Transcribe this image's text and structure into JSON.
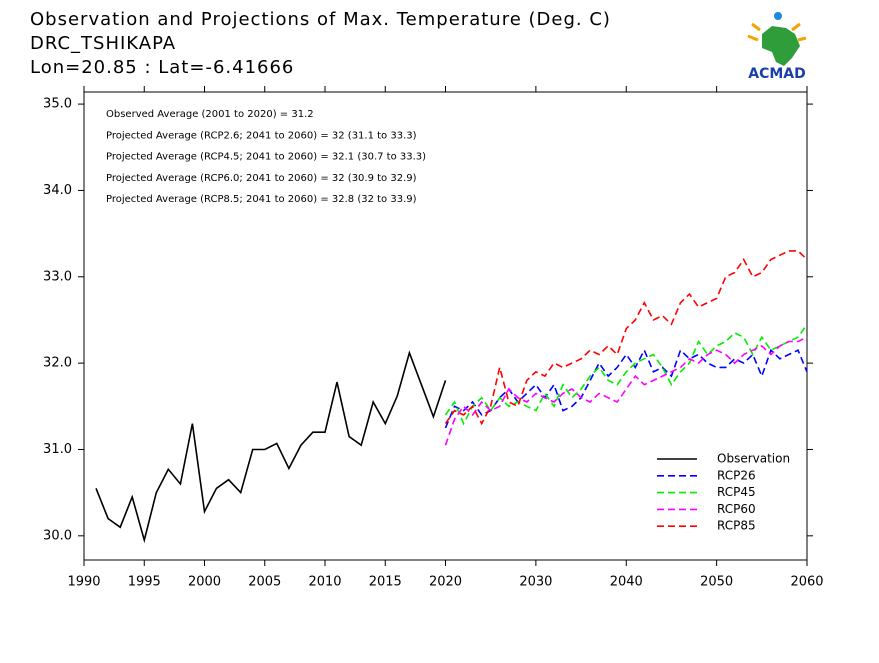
{
  "chart_data": {
    "type": "line",
    "title": "Observation and Projections of Max. Temperature (Deg. C)",
    "subtitle": "DRC_TSHIKAPA",
    "location": "Lon=20.85 : Lat=-6.41666",
    "logo": "ACMAD",
    "annotations": [
      "Observed Average (2001 to 2020) = 31.2",
      "Projected Average (RCP2.6; 2041 to 2060) = 32 (31.1 to 33.3)",
      "Projected Average (RCP4.5; 2041 to 2060) = 32.1 (30.7 to 33.3)",
      "Projected Average (RCP6.0; 2041 to 2060) = 32 (30.9 to 32.9)",
      "Projected Average (RCP8.5; 2041 to 2060) = 32.8 (32 to 33.9)"
    ],
    "x_segments": [
      1990,
      2020,
      2060
    ],
    "xticks": [
      1990,
      1995,
      2000,
      2005,
      2010,
      2015,
      2020,
      2030,
      2040,
      2050,
      2060
    ],
    "ylim": [
      29.72,
      35.14
    ],
    "yticks": [
      {
        "value": 30,
        "label": "30.0"
      },
      {
        "value": 31,
        "label": "31.0"
      },
      {
        "value": 32,
        "label": "32.0"
      },
      {
        "value": 33,
        "label": "33.0"
      },
      {
        "value": 34,
        "label": "34.0"
      },
      {
        "value": 35,
        "label": "35.0"
      }
    ],
    "legend": "lower-right",
    "series": [
      {
        "name": "Observation",
        "color": "#000000",
        "dashed": false,
        "x": [
          1991,
          1992,
          1993,
          1994,
          1995,
          1996,
          1997,
          1998,
          1999,
          2000,
          2001,
          2002,
          2003,
          2004,
          2005,
          2006,
          2007,
          2008,
          2009,
          2010,
          2011,
          2012,
          2013,
          2014,
          2015,
          2016,
          2017,
          2018,
          2019,
          2020
        ],
        "values": [
          30.55,
          30.2,
          30.1,
          30.45,
          29.95,
          30.5,
          30.77,
          30.6,
          31.3,
          30.28,
          30.55,
          30.65,
          30.5,
          31.0,
          31.0,
          31.07,
          30.78,
          31.05,
          31.2,
          31.2,
          31.78,
          31.15,
          31.05,
          31.55,
          31.3,
          31.62,
          32.12,
          31.75,
          31.38,
          31.8
        ]
      },
      {
        "name": "RCP26",
        "color": "#0000ff",
        "dashed": true,
        "x": [
          2020,
          2021,
          2022,
          2023,
          2024,
          2025,
          2026,
          2027,
          2028,
          2029,
          2030,
          2031,
          2032,
          2033,
          2034,
          2035,
          2036,
          2037,
          2038,
          2039,
          2040,
          2041,
          2042,
          2043,
          2044,
          2045,
          2046,
          2047,
          2048,
          2049,
          2050,
          2051,
          2052,
          2053,
          2054,
          2055,
          2056,
          2057,
          2058,
          2059,
          2060
        ],
        "values": [
          31.25,
          31.5,
          31.45,
          31.55,
          31.4,
          31.45,
          31.6,
          31.7,
          31.55,
          31.65,
          31.75,
          31.6,
          31.75,
          31.45,
          31.5,
          31.6,
          31.8,
          32.0,
          31.85,
          31.95,
          32.1,
          31.95,
          32.15,
          31.9,
          31.95,
          31.85,
          32.15,
          32.05,
          32.1,
          32.0,
          31.95,
          31.95,
          32.05,
          32.0,
          32.1,
          31.85,
          32.15,
          32.05,
          32.1,
          32.15,
          31.9
        ]
      },
      {
        "name": "RCP45",
        "color": "#00ee00",
        "dashed": true,
        "x": [
          2020,
          2021,
          2022,
          2023,
          2024,
          2025,
          2026,
          2027,
          2028,
          2029,
          2030,
          2031,
          2032,
          2033,
          2034,
          2035,
          2036,
          2037,
          2038,
          2039,
          2040,
          2041,
          2042,
          2043,
          2044,
          2045,
          2046,
          2047,
          2048,
          2049,
          2050,
          2051,
          2052,
          2053,
          2054,
          2055,
          2056,
          2057,
          2058,
          2059,
          2060
        ],
        "values": [
          31.4,
          31.55,
          31.3,
          31.5,
          31.6,
          31.45,
          31.6,
          31.5,
          31.55,
          31.5,
          31.45,
          31.65,
          31.5,
          31.75,
          31.6,
          31.7,
          31.85,
          31.95,
          31.8,
          31.75,
          31.9,
          32.0,
          32.05,
          32.1,
          31.95,
          31.75,
          31.9,
          32.0,
          32.25,
          32.1,
          32.2,
          32.25,
          32.35,
          32.3,
          32.1,
          32.3,
          32.15,
          32.2,
          32.25,
          32.3,
          32.45
        ]
      },
      {
        "name": "RCP60",
        "color": "#ff00ff",
        "dashed": true,
        "x": [
          2020,
          2021,
          2022,
          2023,
          2024,
          2025,
          2026,
          2027,
          2028,
          2029,
          2030,
          2031,
          2032,
          2033,
          2034,
          2035,
          2036,
          2037,
          2038,
          2039,
          2040,
          2041,
          2042,
          2043,
          2044,
          2045,
          2046,
          2047,
          2048,
          2049,
          2050,
          2051,
          2052,
          2053,
          2054,
          2055,
          2056,
          2057,
          2058,
          2059,
          2060
        ],
        "values": [
          31.05,
          31.35,
          31.5,
          31.4,
          31.55,
          31.45,
          31.5,
          31.7,
          31.6,
          31.55,
          31.65,
          31.6,
          31.55,
          31.65,
          31.7,
          31.6,
          31.55,
          31.65,
          31.6,
          31.55,
          31.7,
          31.85,
          31.75,
          31.8,
          31.85,
          31.9,
          31.95,
          32.05,
          32.0,
          32.1,
          32.15,
          32.1,
          32.0,
          32.1,
          32.15,
          32.2,
          32.1,
          32.2,
          32.25,
          32.25,
          32.3
        ]
      },
      {
        "name": "RCP85",
        "color": "#ff0000",
        "dashed": true,
        "x": [
          2020,
          2021,
          2022,
          2023,
          2024,
          2025,
          2026,
          2027,
          2028,
          2029,
          2030,
          2031,
          2032,
          2033,
          2034,
          2035,
          2036,
          2037,
          2038,
          2039,
          2040,
          2041,
          2042,
          2043,
          2044,
          2045,
          2046,
          2047,
          2048,
          2049,
          2050,
          2051,
          2052,
          2053,
          2054,
          2055,
          2056,
          2057,
          2058,
          2059,
          2060
        ],
        "values": [
          31.3,
          31.45,
          31.4,
          31.5,
          31.3,
          31.5,
          31.95,
          31.55,
          31.5,
          31.8,
          31.9,
          31.85,
          32.0,
          31.95,
          32.0,
          32.05,
          32.15,
          32.1,
          32.2,
          32.1,
          32.4,
          32.5,
          32.7,
          32.5,
          32.55,
          32.45,
          32.7,
          32.8,
          32.65,
          32.7,
          32.75,
          33.0,
          33.05,
          33.2,
          33.0,
          33.05,
          33.2,
          33.25,
          33.3,
          33.3,
          33.2
        ]
      }
    ]
  }
}
